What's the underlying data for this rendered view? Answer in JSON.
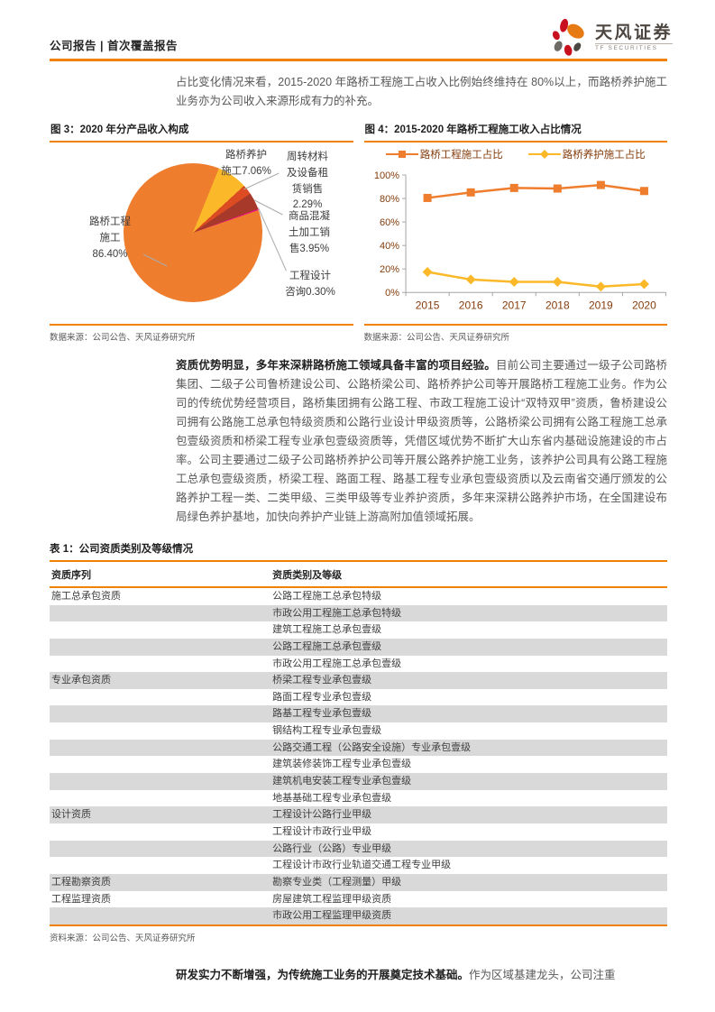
{
  "header": {
    "breadcrumb": "公司报告 | 首次覆盖报告",
    "brand_name": "天风证券",
    "brand_subtitle": "TF SECURITIES"
  },
  "intro_paragraph": "占比变化情况来看，2015-2020 年路桥工程施工占收入比例始终维持在 80%以上，而路桥养护施工业务亦为公司收入来源形成有力的补充。",
  "figure3": {
    "source": "数据来源：公司公告、天风证券研究所"
  },
  "figure4": {
    "source": "数据来源：公司公告、天风证券研究所"
  },
  "chart_data": [
    {
      "type": "pie",
      "title": "图 3：2020 年分产品收入构成",
      "labels": [
        "路桥养护施工",
        "周转材料及设备租赁销售",
        "商品混凝土加工销售",
        "工程设计咨询",
        "路桥工程施工"
      ],
      "values": [
        7.06,
        2.29,
        3.95,
        0.3,
        86.4
      ],
      "colors": [
        "#FBB929",
        "#DC4B21",
        "#A7392B",
        "#E8127C",
        "#EE7D2E"
      ],
      "start_angle_deg": 22,
      "legend_position": "none"
    },
    {
      "type": "line",
      "title": "图 4：2015-2020 年路桥工程施工收入占比情况",
      "categories": [
        "2015",
        "2016",
        "2017",
        "2018",
        "2019",
        "2020"
      ],
      "series": [
        {
          "name": "路桥工程施工占比",
          "color": "#EE7D2E",
          "marker": "square",
          "values": [
            80.5,
            85.2,
            89.0,
            88.5,
            91.5,
            86.4
          ]
        },
        {
          "name": "路桥养护施工占比",
          "color": "#FBB929",
          "marker": "diamond",
          "values": [
            17.5,
            11.0,
            9.0,
            9.0,
            5.0,
            7.1
          ]
        }
      ],
      "ylim": [
        0,
        100
      ],
      "yticks": [
        "0%",
        "20%",
        "40%",
        "60%",
        "80%",
        "100%"
      ],
      "grid": false,
      "legend_position": "top"
    }
  ],
  "qualification_paragraph": {
    "lead": "资质优势明显，多年来深耕路桥施工领域具备丰富的项目经验。",
    "body": "目前公司主要通过一级子公司路桥集团、二级子公司鲁桥建设公司、公路桥梁公司、路桥养护公司等开展路桥工程施工业务。作为公司的传统优势经营项目，路桥集团拥有公路工程、市政工程施工设计“双特双甲”资质，鲁桥建设公司拥有公路施工总承包特级资质和公路行业设计甲级资质等，公路桥梁公司拥有公路工程施工总承包壹级资质和桥梁工程专业承包壹级资质等，凭借区域优势不断扩大山东省内基础设施建设的市占率。公司主要通过二级子公司路桥养护公司等开展公路养护施工业务，该养护公司具有公路工程施工总承包壹级资质，桥梁工程、路面工程、路基工程专业承包壹级资质以及云南省交通厅颁发的公路养护工程一类、二类甲级、三类甲级等专业养护资质，多年来深耕公路养护市场，在全国建设布局绿色养护基地，加快向养护产业链上游高附加值领域拓展。"
  },
  "table": {
    "title": "表 1：公司资质类别及等级情况",
    "columns": [
      "资质序列",
      "资质类别及等级"
    ],
    "rows": [
      {
        "category": "施工总承包资质",
        "item": "公路工程施工总承包特级"
      },
      {
        "category": "",
        "item": "市政公用工程施工总承包特级"
      },
      {
        "category": "",
        "item": "建筑工程施工总承包壹级"
      },
      {
        "category": "",
        "item": "公路工程施工总承包壹级"
      },
      {
        "category": "",
        "item": "市政公用工程施工总承包壹级"
      },
      {
        "category": "专业承包资质",
        "item": "桥梁工程专业承包壹级"
      },
      {
        "category": "",
        "item": "路面工程专业承包壹级"
      },
      {
        "category": "",
        "item": "路基工程专业承包壹级"
      },
      {
        "category": "",
        "item": "钢结构工程专业承包壹级"
      },
      {
        "category": "",
        "item": "公路交通工程（公路安全设施）专业承包壹级"
      },
      {
        "category": "",
        "item": "建筑装修装饰工程专业承包壹级"
      },
      {
        "category": "",
        "item": "建筑机电安装工程专业承包壹级"
      },
      {
        "category": "",
        "item": "地基基础工程专业承包壹级"
      },
      {
        "category": "设计资质",
        "item": "工程设计公路行业甲级"
      },
      {
        "category": "",
        "item": "工程设计市政行业甲级"
      },
      {
        "category": "",
        "item": "公路行业（公路）专业甲级"
      },
      {
        "category": "",
        "item": "工程设计市政行业轨道交通工程专业甲级"
      },
      {
        "category": "工程勘察资质",
        "item": "勘察专业类（工程测量）甲级"
      },
      {
        "category": "工程监理资质",
        "item": "房屋建筑工程监理甲级资质"
      },
      {
        "category": "",
        "item": "市政公用工程监理甲级资质"
      }
    ],
    "source": "资料来源：公司公告、天风证券研究所"
  },
  "rd_paragraph": {
    "lead": "研发实力不断增强，为传统施工业务的开展奠定技术基础。",
    "body": "作为区域基建龙头，公司注重"
  },
  "colors": {
    "accent_orange": "#F18101",
    "series_orange": "#EE7D2E",
    "series_yellow": "#FBB929",
    "axis_label": "#843C0C",
    "table_stripe": "#D9D9D9"
  }
}
